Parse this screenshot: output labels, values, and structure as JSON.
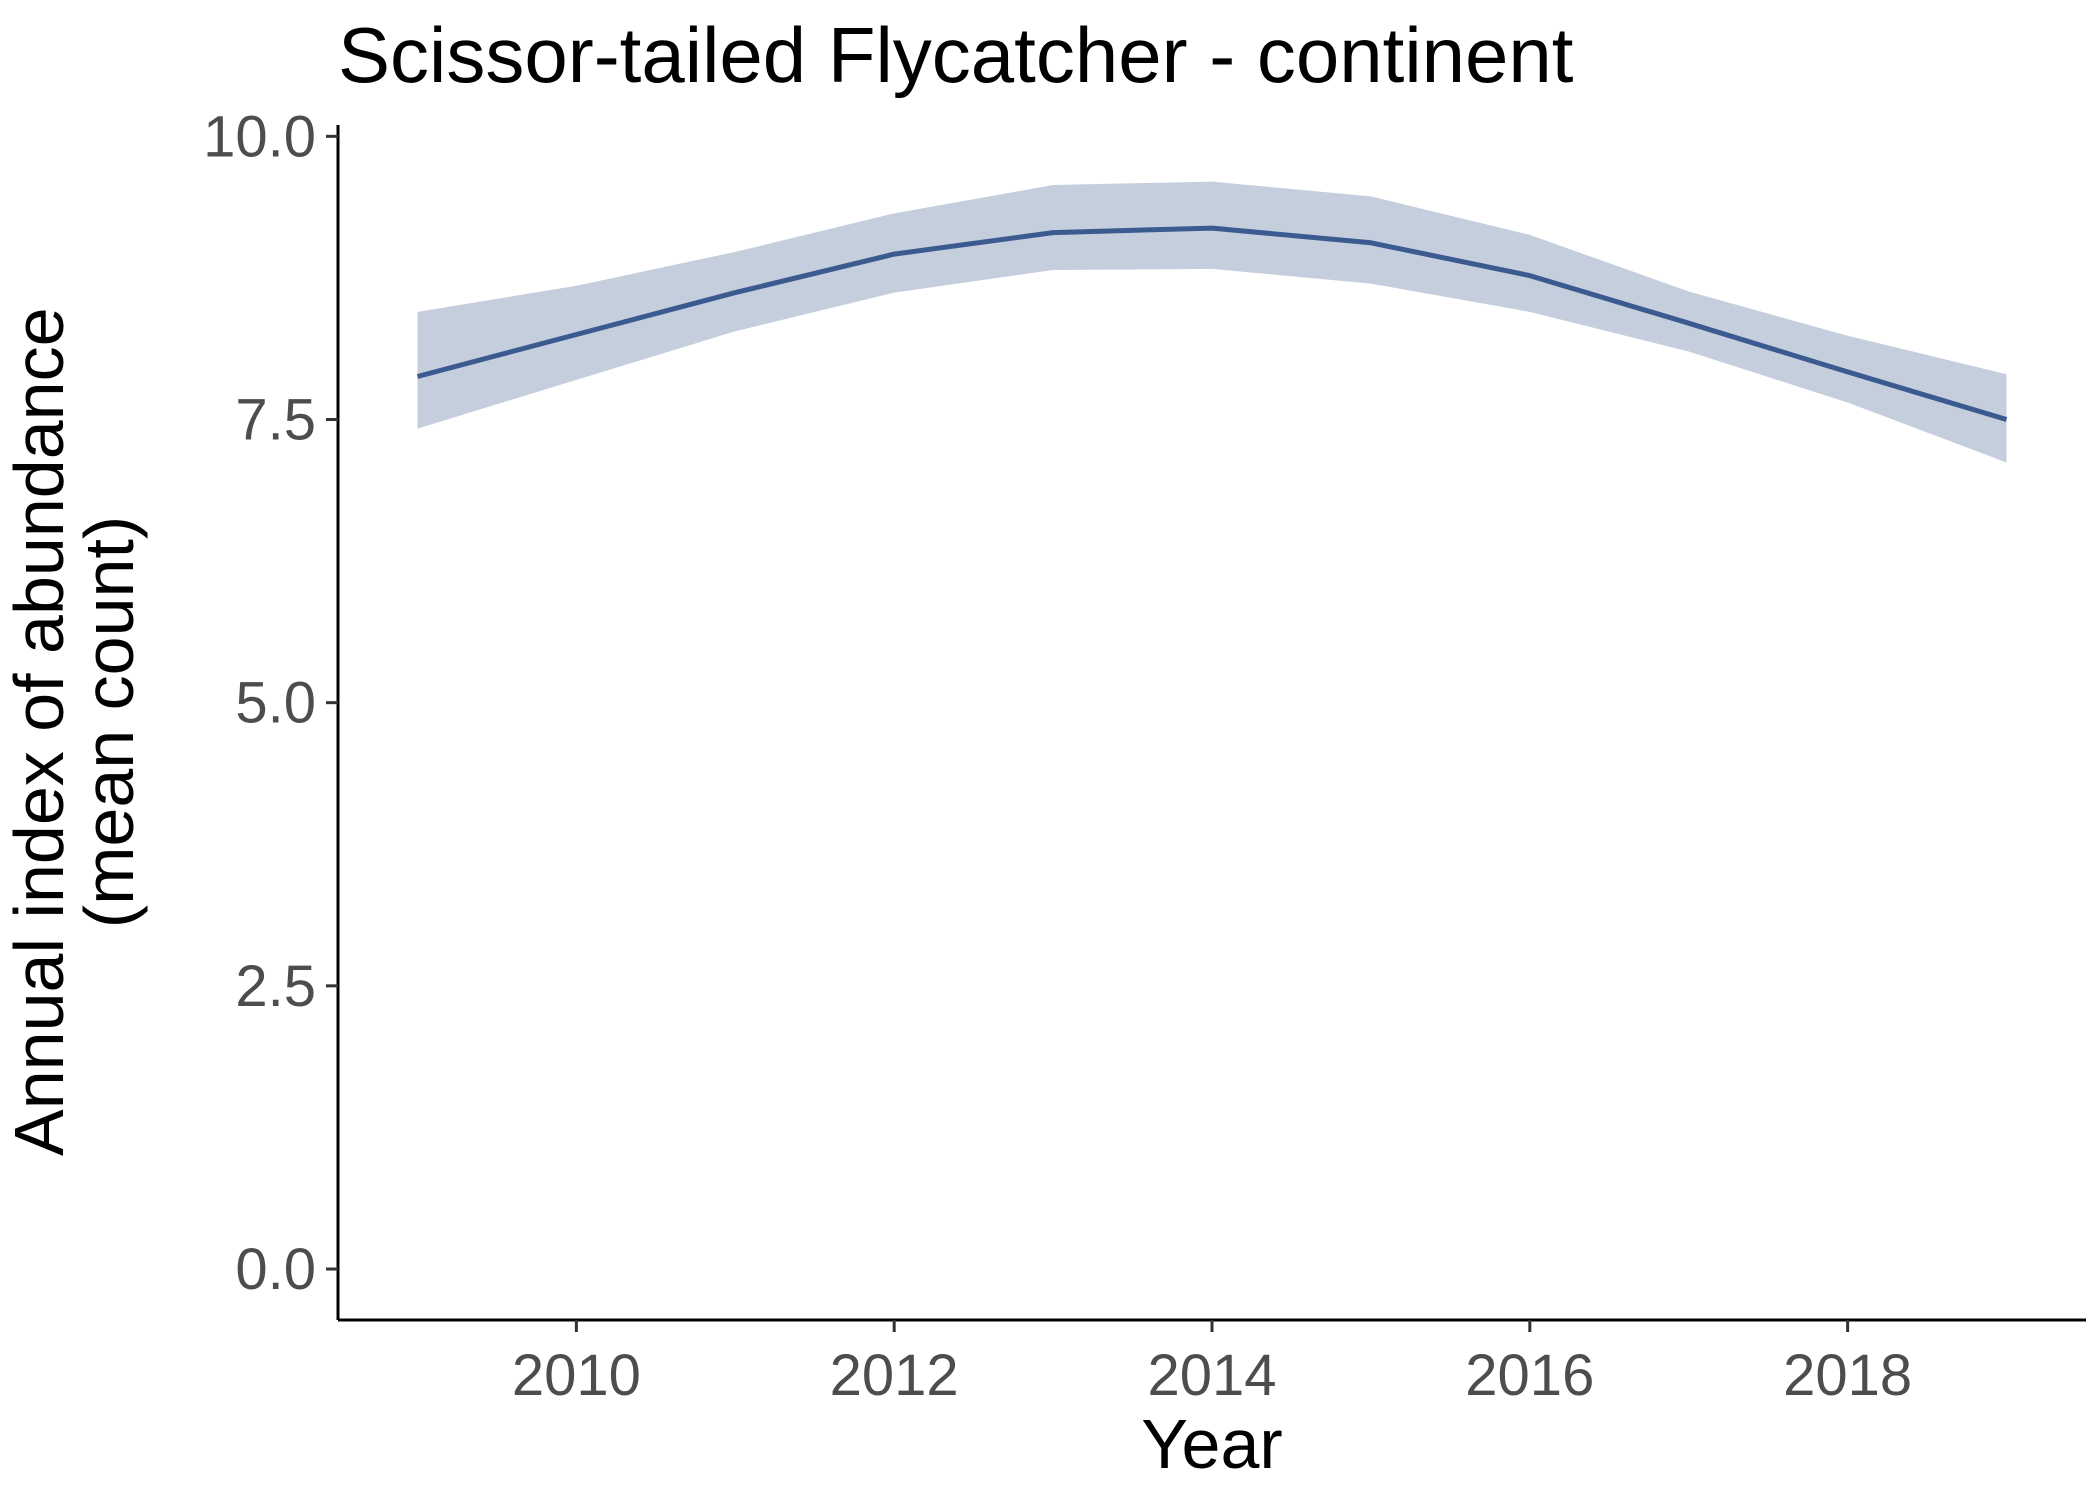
{
  "chart_data": {
    "type": "line",
    "title": "Scissor-tailed Flycatcher - continent",
    "xlabel": "Year",
    "ylabel": [
      "Annual index of abundance",
      "(mean count)"
    ],
    "xlim": [
      2008.5,
      2019.5
    ],
    "ylim": [
      -0.45,
      10.1
    ],
    "x_ticks": [
      2010,
      2012,
      2014,
      2016,
      2018
    ],
    "x_tick_labels": [
      "2010",
      "2012",
      "2014",
      "2016",
      "2018"
    ],
    "y_ticks": [
      0,
      2.5,
      5,
      7.5,
      10
    ],
    "y_tick_labels": [
      "0.0",
      "2.5",
      "5.0",
      "7.5",
      "10.0"
    ],
    "grid": false,
    "legend": "none",
    "series": [
      {
        "x": [
          2009,
          2010,
          2011,
          2012,
          2013,
          2014,
          2015,
          2016,
          2017,
          2018,
          2019
        ],
        "values": [
          7.88,
          8.25,
          8.62,
          8.96,
          9.15,
          9.19,
          9.06,
          8.77,
          8.35,
          7.92,
          7.5
        ],
        "lower": [
          7.42,
          7.85,
          8.28,
          8.62,
          8.82,
          8.83,
          8.7,
          8.45,
          8.1,
          7.65,
          7.12
        ],
        "upper": [
          8.45,
          8.68,
          8.98,
          9.32,
          9.57,
          9.6,
          9.47,
          9.13,
          8.63,
          8.24,
          7.9
        ],
        "line_color": "#3b5a8f",
        "band_color": "#c5cedd"
      }
    ]
  }
}
